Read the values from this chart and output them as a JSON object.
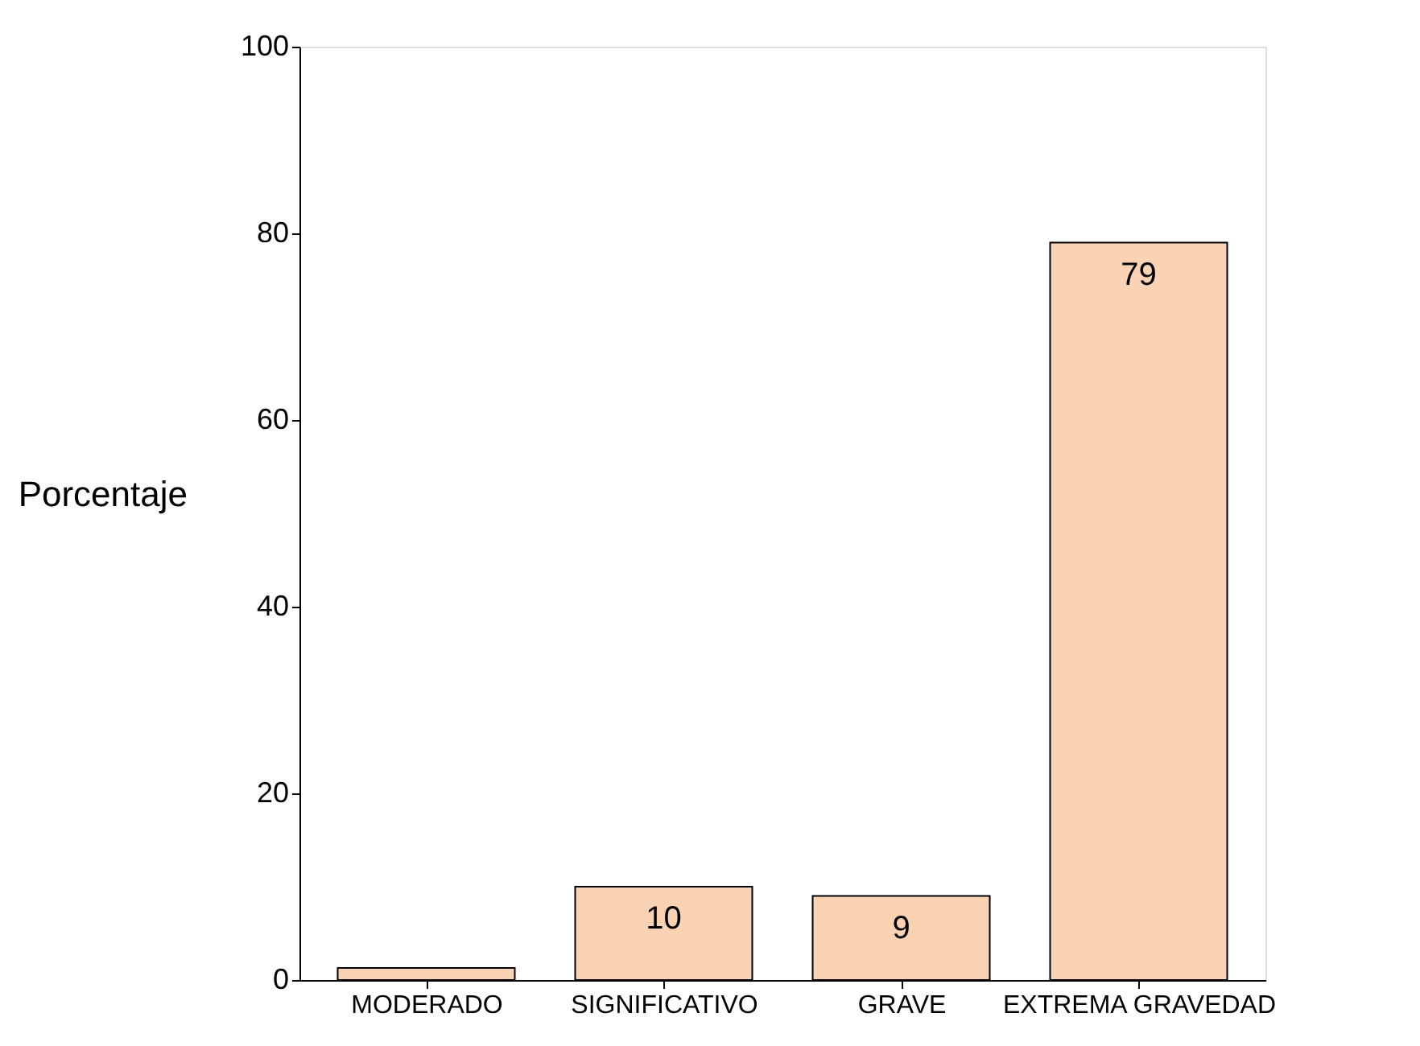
{
  "chart_data": {
    "type": "bar",
    "ylabel": "Porcentaje",
    "categories": [
      "MODERADO",
      "SIGNIFICATIVO",
      "GRAVE",
      "EXTREMA GRAVEDAD"
    ],
    "values": [
      1.3,
      10,
      9,
      79
    ],
    "value_labels": [
      null,
      "10",
      "9",
      "79"
    ],
    "color": "#f9d3b3",
    "ylim": [
      0,
      100
    ],
    "yticks": [
      0,
      20,
      40,
      60,
      80,
      100
    ],
    "grid": false
  }
}
